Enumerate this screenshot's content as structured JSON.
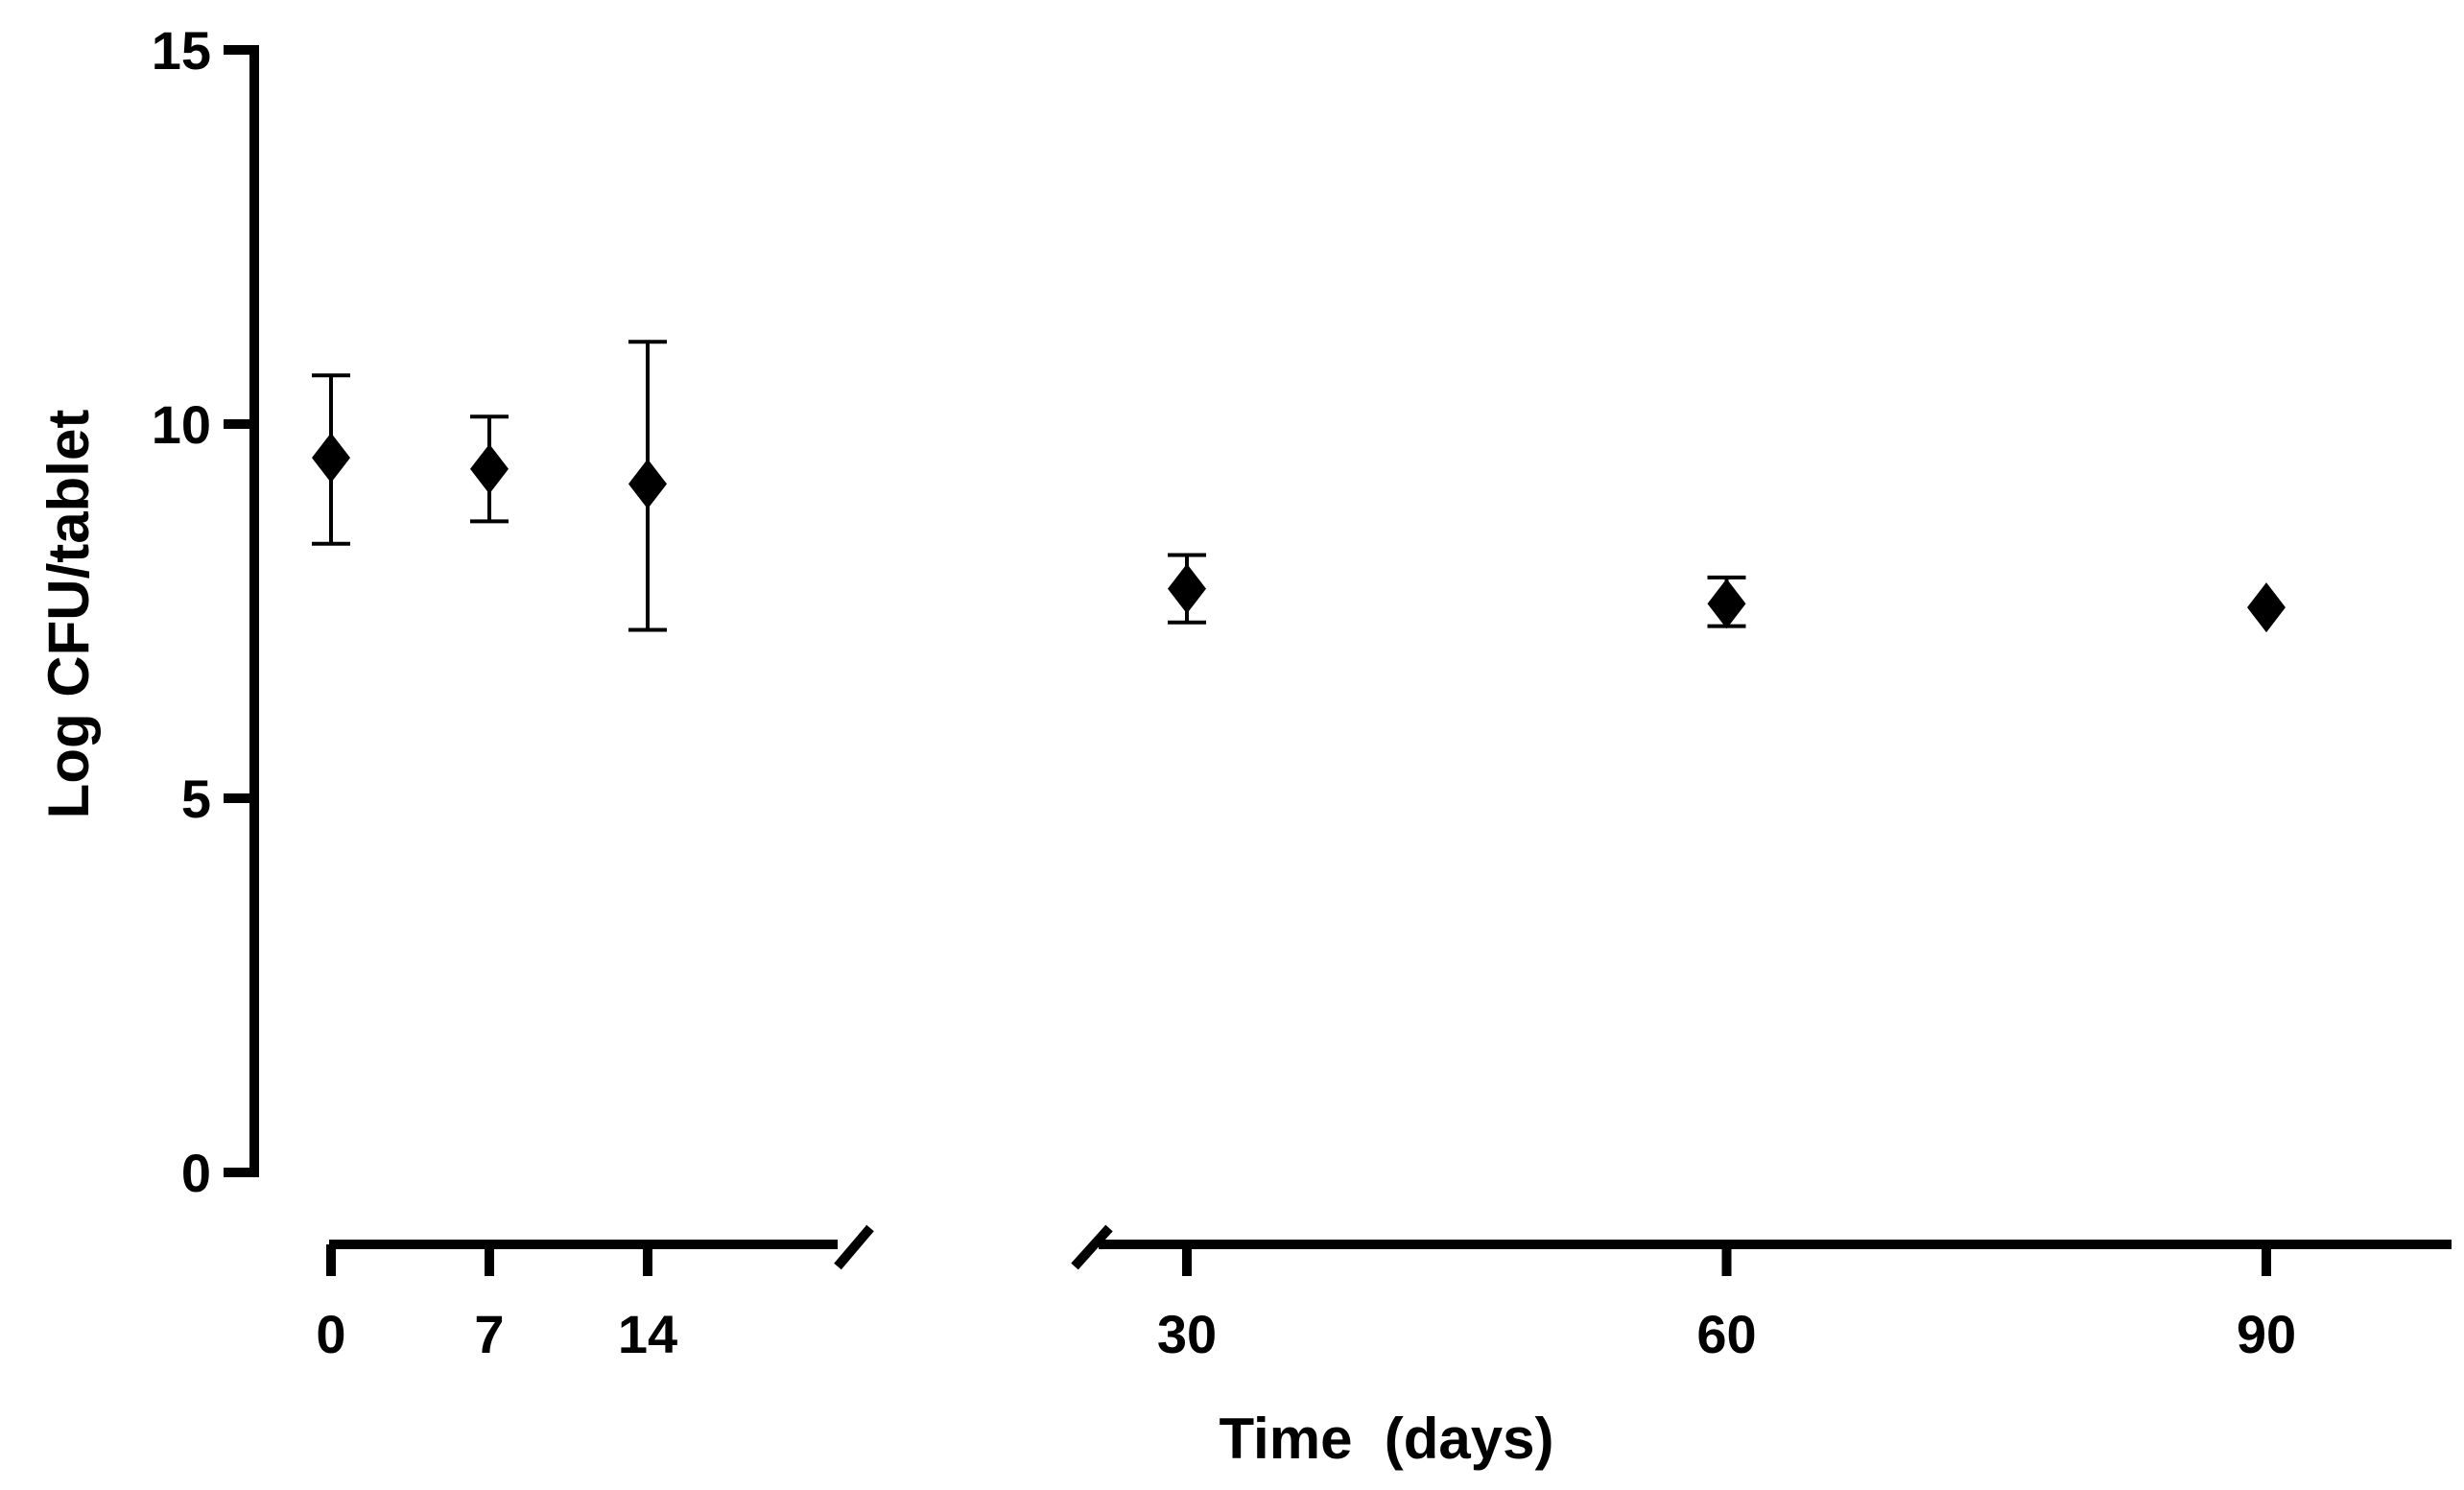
{
  "chart_data": {
    "type": "scatter",
    "xlabel": "Time  (days)",
    "ylabel": "Log CFU/tablet",
    "ylim": [
      0,
      15
    ],
    "yticks": [
      0,
      5,
      10,
      15
    ],
    "xticks": [
      0,
      7,
      14,
      30,
      60,
      90
    ],
    "x_axis_broken": true,
    "x_axis_segments": [
      [
        0,
        15
      ],
      [
        25,
        100
      ]
    ],
    "grid": false,
    "marker": "diamond",
    "colors": {
      "marker": "#000000",
      "axis": "#000000"
    },
    "points": [
      {
        "x": 0,
        "y": 9.55,
        "err_low": 8.4,
        "err_high": 10.65
      },
      {
        "x": 7,
        "y": 9.4,
        "err_low": 8.7,
        "err_high": 10.1
      },
      {
        "x": 14,
        "y": 9.2,
        "err_low": 7.25,
        "err_high": 11.1
      },
      {
        "x": 30,
        "y": 7.8,
        "err_low": 7.35,
        "err_high": 8.25
      },
      {
        "x": 60,
        "y": 7.6,
        "err_low": 7.3,
        "err_high": 7.95
      },
      {
        "x": 90,
        "y": 7.55,
        "err_low": null,
        "err_high": null
      }
    ]
  }
}
